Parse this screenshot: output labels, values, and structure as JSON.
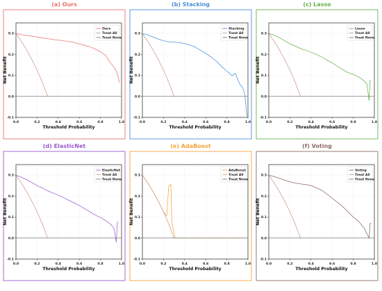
{
  "figure": {
    "xlabel": "Threshold Probability",
    "ylabel": "Net Benefit",
    "baseline_label": "Treat All",
    "none_label": "Treat None",
    "treat_all_color": "#c9a08c",
    "treat_none_color": "#777777",
    "zero_line_color": "#888888"
  },
  "chart_data": [
    {
      "type": "line",
      "title": "(a) Ours",
      "color": "#e8736e",
      "frame_color": "#e8736e",
      "xlim": [
        0.0,
        1.0
      ],
      "ylim": [
        -0.1,
        0.35
      ],
      "xticks": [
        "0.0",
        "0.2",
        "0.4",
        "0.6",
        "0.8",
        "1.0"
      ],
      "yticks": [
        "-0.1",
        "0.0",
        "0.1",
        "0.2",
        "0.3"
      ],
      "legend": "top-right",
      "grid": true,
      "series": [
        {
          "name": "Ours",
          "role": "model",
          "x": [
            0.0,
            0.02,
            0.05,
            0.1,
            0.15,
            0.2,
            0.25,
            0.3,
            0.35,
            0.4,
            0.45,
            0.5,
            0.55,
            0.6,
            0.65,
            0.7,
            0.75,
            0.8,
            0.85,
            0.88,
            0.9,
            0.92,
            0.95,
            0.97,
            0.98
          ],
          "y": [
            0.3,
            0.298,
            0.294,
            0.29,
            0.287,
            0.283,
            0.278,
            0.275,
            0.271,
            0.268,
            0.265,
            0.262,
            0.257,
            0.25,
            0.243,
            0.236,
            0.226,
            0.213,
            0.195,
            0.17,
            0.157,
            0.145,
            0.122,
            0.09,
            0.065
          ]
        },
        {
          "name": "Treat All",
          "role": "all",
          "x": [
            0.0,
            0.05,
            0.1,
            0.15,
            0.2,
            0.25,
            0.3,
            0.31
          ],
          "y": [
            0.3,
            0.263,
            0.222,
            0.176,
            0.125,
            0.067,
            0.0,
            0.0
          ]
        },
        {
          "name": "Treat None",
          "role": "none",
          "x": [
            0.0,
            1.0
          ],
          "y": [
            0.0,
            0.0
          ]
        }
      ]
    },
    {
      "type": "line",
      "title": "(b) Stacking",
      "color": "#4a8fd8",
      "frame_color": "#4a8fd8",
      "xlim": [
        0.0,
        1.0
      ],
      "ylim": [
        -0.1,
        0.35
      ],
      "xticks": [
        "0.0",
        "0.2",
        "0.4",
        "0.6",
        "0.8",
        "1.0"
      ],
      "yticks": [
        "-0.1",
        "0.0",
        "0.1",
        "0.2",
        "0.3"
      ],
      "legend": "top-right",
      "grid": true,
      "series": [
        {
          "name": "Stacking",
          "role": "model",
          "x": [
            0.0,
            0.05,
            0.1,
            0.15,
            0.2,
            0.25,
            0.3,
            0.35,
            0.4,
            0.45,
            0.5,
            0.55,
            0.6,
            0.65,
            0.7,
            0.75,
            0.8,
            0.82,
            0.85,
            0.88,
            0.9,
            0.92,
            0.95,
            0.97,
            0.99
          ],
          "y": [
            0.3,
            0.293,
            0.283,
            0.273,
            0.265,
            0.26,
            0.258,
            0.256,
            0.252,
            0.245,
            0.235,
            0.22,
            0.205,
            0.188,
            0.168,
            0.143,
            0.12,
            0.112,
            0.098,
            0.11,
            0.085,
            0.06,
            0.042,
            0.01,
            -0.095
          ]
        },
        {
          "name": "Treat All",
          "role": "all",
          "x": [
            0.0,
            0.05,
            0.1,
            0.15,
            0.2,
            0.25,
            0.3,
            0.31
          ],
          "y": [
            0.3,
            0.263,
            0.222,
            0.176,
            0.125,
            0.067,
            0.0,
            0.0
          ]
        },
        {
          "name": "Treat None",
          "role": "none",
          "x": [
            0.0,
            1.0
          ],
          "y": [
            0.0,
            0.0
          ]
        }
      ]
    },
    {
      "type": "line",
      "title": "(c) Lasso",
      "color": "#6ab04c",
      "frame_color": "#6ab04c",
      "xlim": [
        0.0,
        1.0
      ],
      "ylim": [
        -0.1,
        0.35
      ],
      "xticks": [
        "0.0",
        "0.2",
        "0.4",
        "0.6",
        "0.8",
        "1.0"
      ],
      "yticks": [
        "-0.1",
        "0.0",
        "0.1",
        "0.2",
        "0.3"
      ],
      "legend": "top-right",
      "grid": true,
      "series": [
        {
          "name": "Lasso",
          "role": "model",
          "x": [
            0.0,
            0.05,
            0.1,
            0.15,
            0.2,
            0.25,
            0.3,
            0.35,
            0.4,
            0.45,
            0.5,
            0.55,
            0.6,
            0.65,
            0.7,
            0.75,
            0.8,
            0.85,
            0.9,
            0.93,
            0.95,
            0.96,
            0.97
          ],
          "y": [
            0.3,
            0.292,
            0.28,
            0.265,
            0.25,
            0.24,
            0.228,
            0.22,
            0.21,
            0.2,
            0.188,
            0.173,
            0.16,
            0.143,
            0.128,
            0.113,
            0.105,
            0.093,
            0.075,
            0.058,
            -0.02,
            0.075,
            0.075
          ]
        },
        {
          "name": "Treat All",
          "role": "all",
          "x": [
            0.0,
            0.05,
            0.1,
            0.15,
            0.2,
            0.25,
            0.3,
            0.31
          ],
          "y": [
            0.3,
            0.263,
            0.222,
            0.176,
            0.125,
            0.067,
            0.0,
            0.0
          ]
        },
        {
          "name": "Treat None",
          "role": "none",
          "x": [
            0.0,
            1.0
          ],
          "y": [
            0.0,
            0.0
          ]
        }
      ]
    },
    {
      "type": "line",
      "title": "(d) ElasticNet",
      "color": "#9b59d0",
      "frame_color": "#9b59d0",
      "xlim": [
        0.0,
        1.0
      ],
      "ylim": [
        -0.1,
        0.35
      ],
      "xticks": [
        "0.0",
        "0.2",
        "0.4",
        "0.6",
        "0.8",
        "1.0"
      ],
      "yticks": [
        "-0.1",
        "0.0",
        "0.1",
        "0.2",
        "0.3"
      ],
      "legend": "top-right",
      "grid": true,
      "series": [
        {
          "name": "ElasticNet",
          "role": "model",
          "x": [
            0.0,
            0.05,
            0.1,
            0.15,
            0.2,
            0.25,
            0.3,
            0.35,
            0.4,
            0.45,
            0.5,
            0.55,
            0.6,
            0.65,
            0.7,
            0.75,
            0.8,
            0.85,
            0.9,
            0.93,
            0.95,
            0.96,
            0.97
          ],
          "y": [
            0.3,
            0.29,
            0.278,
            0.265,
            0.25,
            0.238,
            0.225,
            0.215,
            0.205,
            0.193,
            0.18,
            0.168,
            0.155,
            0.14,
            0.125,
            0.11,
            0.098,
            0.083,
            0.065,
            0.045,
            -0.02,
            0.075,
            0.075
          ]
        },
        {
          "name": "Treat All",
          "role": "all",
          "x": [
            0.0,
            0.05,
            0.1,
            0.15,
            0.2,
            0.25,
            0.3,
            0.31
          ],
          "y": [
            0.3,
            0.263,
            0.222,
            0.176,
            0.125,
            0.067,
            0.0,
            0.0
          ]
        },
        {
          "name": "Treat None",
          "role": "none",
          "x": [
            0.0,
            1.0
          ],
          "y": [
            0.0,
            0.0
          ]
        }
      ]
    },
    {
      "type": "line",
      "title": "(e) AdaBoost",
      "color": "#f5a33a",
      "frame_color": "#f5a33a",
      "xlim": [
        0.0,
        1.0
      ],
      "ylim": [
        -0.1,
        0.35
      ],
      "xticks": [
        "0.0",
        "0.2",
        "0.4",
        "0.6",
        "0.8",
        "1.0"
      ],
      "yticks": [
        "-0.1",
        "0.0",
        "0.1",
        "0.2",
        "0.3"
      ],
      "legend": "top-right",
      "grid": true,
      "series": [
        {
          "name": "AdaBoost",
          "role": "model",
          "x": [
            0.0,
            0.05,
            0.1,
            0.15,
            0.2,
            0.23,
            0.25,
            0.27,
            0.28,
            0.3,
            0.31,
            0.32,
            1.0
          ],
          "y": [
            0.3,
            0.263,
            0.222,
            0.176,
            0.125,
            0.105,
            0.25,
            0.255,
            0.07,
            0.025,
            0.0,
            0.0,
            0.0
          ]
        },
        {
          "name": "Treat All",
          "role": "all",
          "x": [
            0.0,
            0.05,
            0.1,
            0.15,
            0.2,
            0.25,
            0.3,
            0.31
          ],
          "y": [
            0.3,
            0.263,
            0.222,
            0.176,
            0.125,
            0.067,
            0.0,
            0.0
          ]
        },
        {
          "name": "Treat None",
          "role": "none",
          "x": [
            0.0,
            1.0
          ],
          "y": [
            0.0,
            0.0
          ]
        }
      ]
    },
    {
      "type": "line",
      "title": "(f) Voting",
      "color": "#8a6a62",
      "frame_color": "#8a6a62",
      "xlim": [
        0.0,
        1.0
      ],
      "ylim": [
        -0.1,
        0.35
      ],
      "xticks": [
        "0.0",
        "0.2",
        "0.4",
        "0.6",
        "0.8",
        "1.0"
      ],
      "yticks": [
        "-0.1",
        "0.0",
        "0.1",
        "0.2",
        "0.3"
      ],
      "legend": "top-right",
      "grid": true,
      "series": [
        {
          "name": "Voting",
          "role": "model",
          "x": [
            0.0,
            0.05,
            0.1,
            0.15,
            0.2,
            0.25,
            0.3,
            0.35,
            0.4,
            0.45,
            0.5,
            0.55,
            0.6,
            0.65,
            0.7,
            0.75,
            0.8,
            0.85,
            0.9,
            0.93,
            0.95,
            0.96,
            0.97
          ],
          "y": [
            0.3,
            0.293,
            0.285,
            0.276,
            0.268,
            0.262,
            0.258,
            0.255,
            0.25,
            0.24,
            0.228,
            0.21,
            0.19,
            0.17,
            0.15,
            0.125,
            0.1,
            0.08,
            0.05,
            0.02,
            0.0,
            0.07,
            0.07
          ]
        },
        {
          "name": "Treat All",
          "role": "all",
          "x": [
            0.0,
            0.05,
            0.1,
            0.15,
            0.2,
            0.25,
            0.3,
            0.31
          ],
          "y": [
            0.3,
            0.263,
            0.222,
            0.176,
            0.125,
            0.067,
            0.0,
            0.0
          ]
        },
        {
          "name": "Treat None",
          "role": "none",
          "x": [
            0.0,
            1.0
          ],
          "y": [
            0.0,
            0.0
          ]
        }
      ]
    }
  ]
}
